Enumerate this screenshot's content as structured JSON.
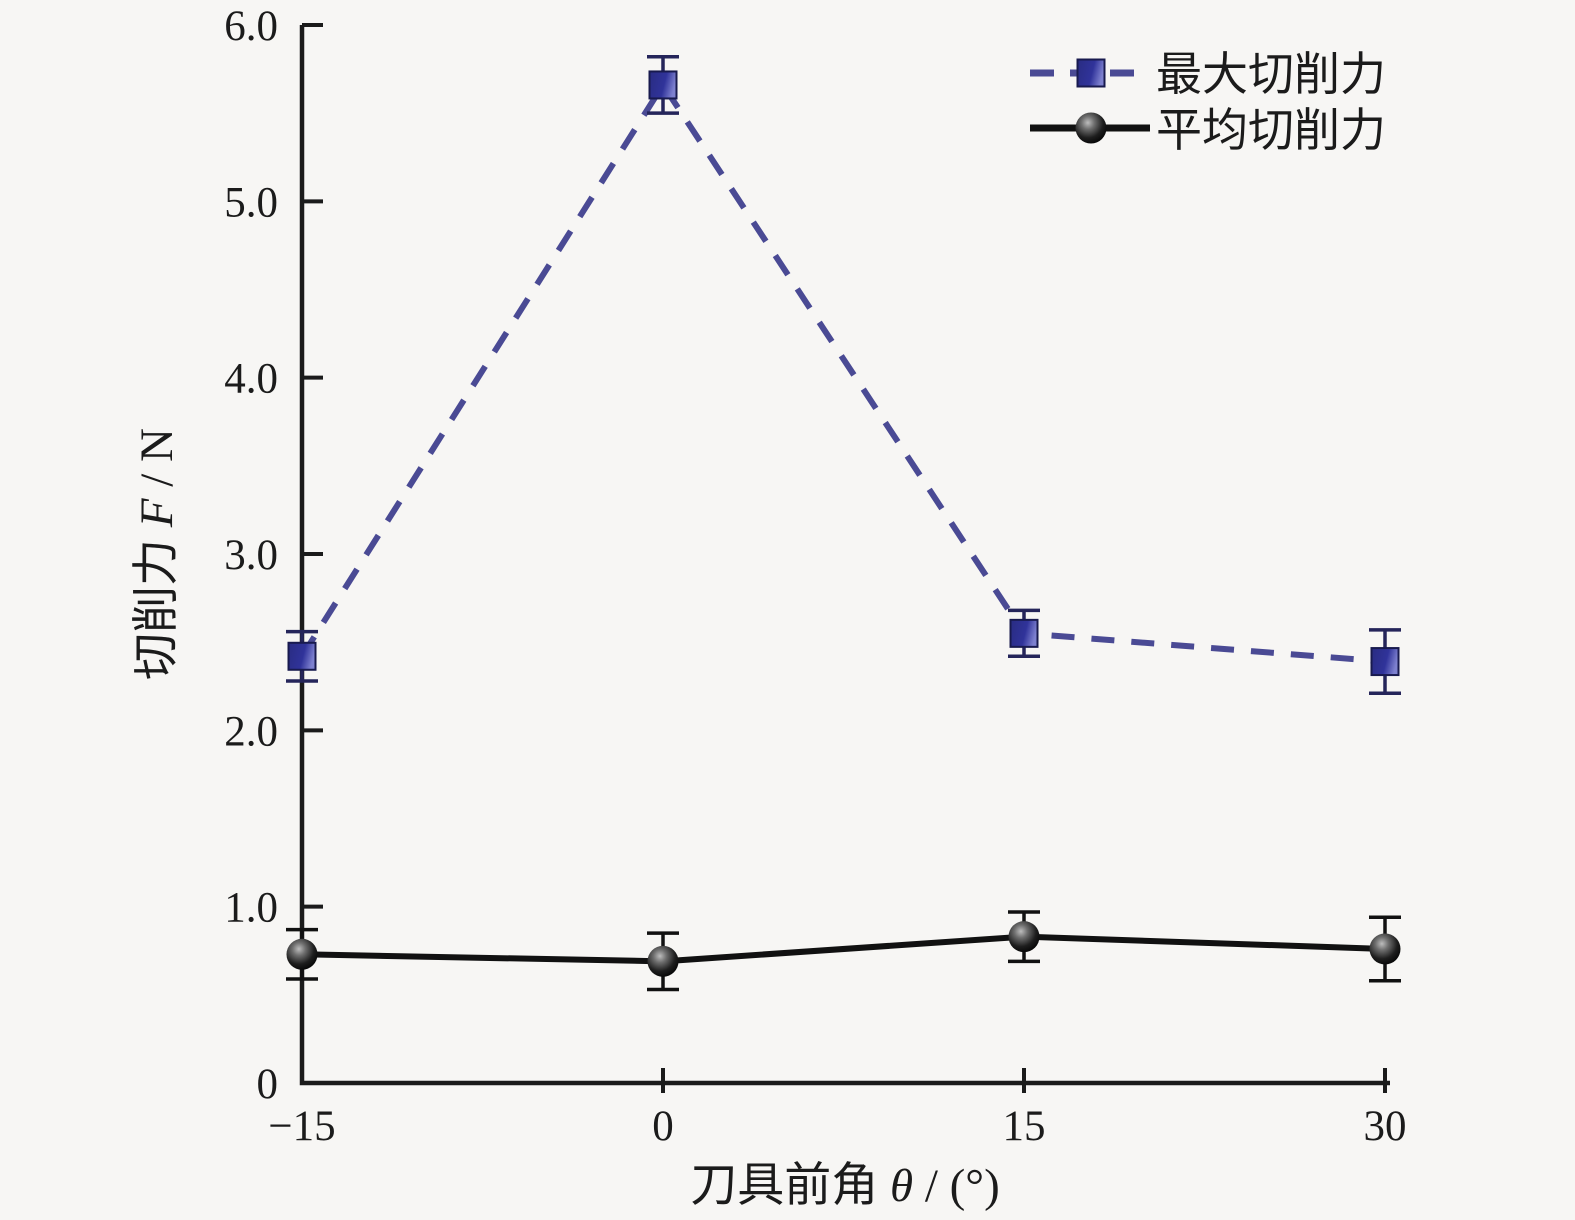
{
  "figure": {
    "background_color": "#f7f6f4",
    "axis_color": "#1b1b1b"
  },
  "chart_data": {
    "type": "line",
    "title": "",
    "xlabel": "刀具前角 θ / (°)",
    "xlabel_parts": {
      "prefix": "刀具前角 ",
      "symbol": "θ",
      "suffix": " / (°)"
    },
    "ylabel": "切削力 F / N",
    "ylabel_parts": {
      "prefix": "切削力 ",
      "symbol": "F",
      "suffix": " / N"
    },
    "x": [
      -15,
      0,
      15,
      30
    ],
    "xlim": [
      -15,
      30
    ],
    "ylim": [
      0,
      6
    ],
    "x_ticks": [
      -15,
      0,
      15,
      30
    ],
    "x_tick_labels": [
      "−15",
      "0",
      "15",
      "30"
    ],
    "y_ticks": [
      0,
      1,
      2,
      3,
      4,
      5,
      6
    ],
    "y_tick_labels": [
      "0",
      "1.0",
      "2.0",
      "3.0",
      "4.0",
      "5.0",
      "6.0"
    ],
    "grid": false,
    "legend_position": "top-right",
    "series": [
      {
        "name": "最大切削力",
        "marker": "square",
        "line_style": "dashed",
        "marker_color": "#2e3192",
        "line_color": "#4a4a94",
        "error_color": "#25255a",
        "values": [
          2.42,
          5.66,
          2.55,
          2.39
        ],
        "errors": [
          0.14,
          0.16,
          0.13,
          0.18
        ]
      },
      {
        "name": "平均切削力",
        "marker": "sphere",
        "line_style": "solid",
        "marker_color": "#0d0d0d",
        "line_color": "#111111",
        "error_color": "#111111",
        "values": [
          0.73,
          0.69,
          0.83,
          0.76
        ],
        "errors": [
          0.14,
          0.16,
          0.14,
          0.18
        ]
      }
    ]
  }
}
